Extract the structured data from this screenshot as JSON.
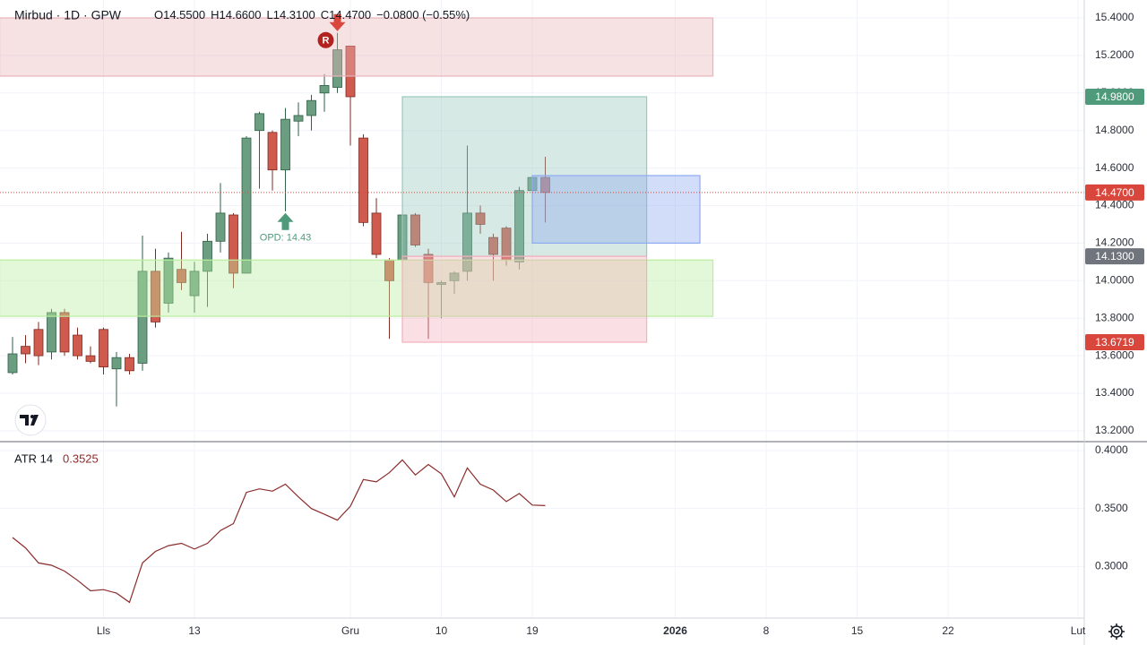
{
  "chart_data": [
    {
      "type": "candlestick",
      "title": "Mirbud · 1D · GPW",
      "header": [
        "O14.5500",
        "H14.6600",
        "L14.3100",
        "C14.4700",
        "−0.0800 (−0.55%)"
      ],
      "x": [
        0,
        1,
        2,
        3,
        4,
        5,
        6,
        7,
        8,
        9,
        10,
        11,
        12,
        13,
        14,
        15,
        16,
        17,
        18,
        19,
        20,
        21,
        22,
        23,
        24,
        25,
        26,
        27,
        28,
        29,
        30,
        31,
        32,
        33,
        34,
        35,
        36,
        37,
        38,
        39,
        40,
        41
      ],
      "open": [
        13.51,
        13.65,
        13.74,
        13.62,
        13.83,
        13.71,
        13.6,
        13.74,
        13.53,
        13.59,
        13.56,
        14.05,
        13.88,
        14.06,
        13.92,
        14.05,
        14.21,
        14.35,
        14.04,
        14.8,
        14.79,
        14.59,
        14.85,
        14.88,
        15.0,
        15.03,
        15.25,
        14.76,
        14.36,
        14.11,
        14.11,
        14.35,
        14.14,
        13.98,
        14.0,
        14.05,
        14.36,
        14.23,
        14.28,
        14.1,
        14.48,
        14.55
      ],
      "high": [
        13.7,
        13.71,
        13.78,
        13.85,
        13.85,
        13.75,
        13.65,
        13.75,
        13.62,
        13.61,
        14.24,
        14.17,
        14.15,
        14.26,
        14.1,
        14.25,
        14.52,
        14.36,
        14.77,
        14.9,
        14.8,
        14.92,
        14.95,
        14.99,
        15.1,
        15.32,
        15.25,
        14.78,
        14.44,
        14.12,
        14.45,
        14.36,
        14.17,
        14.0,
        14.05,
        14.72,
        14.4,
        14.25,
        14.29,
        14.5,
        14.56,
        14.66
      ],
      "low": [
        13.5,
        13.56,
        13.55,
        13.58,
        13.6,
        13.58,
        13.56,
        13.5,
        13.33,
        13.5,
        13.52,
        13.75,
        13.83,
        13.95,
        13.83,
        13.86,
        14.15,
        13.96,
        14.04,
        14.49,
        14.48,
        14.37,
        14.77,
        14.8,
        14.9,
        15.0,
        14.72,
        14.29,
        14.12,
        13.69,
        13.91,
        14.18,
        13.69,
        13.8,
        13.93,
        14.0,
        14.25,
        14.0,
        14.08,
        14.06,
        14.45,
        14.31
      ],
      "close": [
        13.61,
        13.61,
        13.6,
        13.83,
        13.62,
        13.6,
        13.57,
        13.54,
        13.59,
        13.52,
        14.05,
        13.78,
        14.12,
        13.99,
        14.05,
        14.21,
        14.36,
        14.04,
        14.76,
        14.89,
        14.59,
        14.86,
        14.88,
        14.96,
        15.04,
        15.23,
        14.98,
        14.31,
        14.14,
        14.0,
        14.35,
        14.19,
        13.99,
        13.99,
        14.04,
        14.36,
        14.3,
        14.14,
        14.11,
        14.48,
        14.55,
        14.47
      ],
      "up_color": "#6b9e80",
      "down_color": "#cf5a4e",
      "xlim": [
        -0.966,
        82.48
      ],
      "xticks": [
        {
          "value": 7,
          "label": "Lls"
        },
        {
          "value": 14,
          "label": "13"
        },
        {
          "value": 26,
          "label": "Gru"
        },
        {
          "value": 33,
          "label": "10"
        },
        {
          "value": 40,
          "label": "19"
        },
        {
          "value": 51,
          "label": "2026"
        },
        {
          "value": 58,
          "label": "8"
        },
        {
          "value": 65,
          "label": "15"
        },
        {
          "value": 72,
          "label": "22"
        },
        {
          "value": 82,
          "label": "Lut"
        }
      ],
      "ylim": [
        13.147,
        15.4955
      ],
      "yticks": [
        {
          "value": 15.4,
          "label": "15.4000"
        },
        {
          "value": 15.2,
          "label": "15.2000"
        },
        {
          "value": 15.0,
          "label": "15.0000"
        },
        {
          "value": 14.8,
          "label": "14.8000"
        },
        {
          "value": 14.6,
          "label": "14.6000"
        },
        {
          "value": 14.4,
          "label": "14.4000"
        },
        {
          "value": 14.2,
          "label": "14.2000"
        },
        {
          "value": 14.0,
          "label": "14.0000"
        },
        {
          "value": 13.8,
          "label": "13.8000"
        },
        {
          "value": 13.6,
          "label": "13.6000"
        },
        {
          "value": 13.4,
          "label": "13.4000"
        },
        {
          "value": 13.2,
          "label": "13.2000"
        }
      ],
      "grid": true,
      "zones": [
        {
          "x0": -1,
          "x1": 53.9,
          "y0": 15.09,
          "y1": 15.4,
          "color": "#e8b4ba"
        },
        {
          "x0": -1,
          "x1": 53.9,
          "y0": 13.81,
          "y1": 14.11,
          "color": "#b9ee9d"
        },
        {
          "x0": 30,
          "x1": 48.8,
          "y0": 14.13,
          "y1": 14.98,
          "color": "#9cc8bb"
        },
        {
          "x0": 30,
          "x1": 48.8,
          "y0": 13.6719,
          "y1": 14.13,
          "color": "#f3b0bb"
        },
        {
          "x0": 40,
          "x1": 52.9,
          "y0": 14.2,
          "y1": 14.56,
          "color": "#8eaaf0"
        }
      ],
      "last_price": 14.47,
      "price_tags": [
        {
          "value": 14.98,
          "label": "14.9800",
          "color": "#4e9a7a"
        },
        {
          "value": 14.47,
          "label": "14.4700",
          "color": "#d9473c"
        },
        {
          "value": 14.13,
          "label": "14.1300",
          "color": "#6f747d"
        },
        {
          "value": 13.6719,
          "label": "13.6719",
          "color": "#d9473c"
        }
      ],
      "annotations": [
        {
          "x": 21,
          "value": 14.37,
          "label": "OPD: 14.43",
          "color": "#4e9a7a"
        },
        {
          "x": 25,
          "value": 15.32,
          "label": "R",
          "color": "#b2221f"
        }
      ]
    },
    {
      "type": "line",
      "name": "ATR 14",
      "legend_value": 0.3525,
      "color": "#8b2c2c",
      "x": [
        0,
        1,
        2,
        3,
        4,
        5,
        6,
        7,
        8,
        9,
        10,
        11,
        12,
        13,
        14,
        15,
        16,
        17,
        18,
        19,
        20,
        21,
        22,
        23,
        24,
        25,
        26,
        27,
        28,
        29,
        30,
        31,
        32,
        33,
        34,
        35,
        36,
        37,
        38,
        39,
        40,
        41
      ],
      "values": [
        0.325,
        0.316,
        0.303,
        0.301,
        0.296,
        0.288,
        0.279,
        0.28,
        0.277,
        0.269,
        0.303,
        0.313,
        0.318,
        0.32,
        0.315,
        0.32,
        0.331,
        0.337,
        0.364,
        0.367,
        0.365,
        0.371,
        0.36,
        0.35,
        0.345,
        0.34,
        0.352,
        0.375,
        0.373,
        0.381,
        0.392,
        0.379,
        0.388,
        0.38,
        0.36,
        0.385,
        0.371,
        0.366,
        0.356,
        0.363,
        0.353,
        0.3525
      ],
      "ylim": [
        0.2554,
        0.4062
      ],
      "yticks": [
        {
          "value": 0.4,
          "label": "0.4000"
        },
        {
          "value": 0.35,
          "label": "0.3500"
        },
        {
          "value": 0.3,
          "label": "0.3000"
        }
      ]
    }
  ]
}
